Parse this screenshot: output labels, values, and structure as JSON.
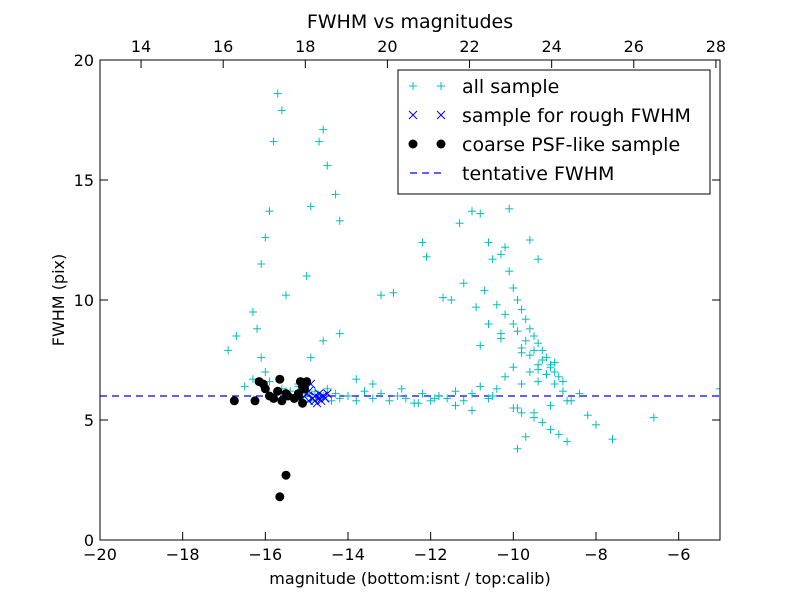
{
  "chart_data": {
    "type": "scatter",
    "title": "FWHM vs magnitudes",
    "xlabel": "magnitude (bottom:isnt / top:calib)",
    "ylabel": "FWHM (pix)",
    "xlim": [
      -20,
      -5
    ],
    "ylim": [
      0,
      20
    ],
    "x_ticks": [
      "−20",
      "−18",
      "−16",
      "−14",
      "−12",
      "−10",
      "−8",
      "−6"
    ],
    "x_tick_values": [
      -20,
      -18,
      -16,
      -14,
      -12,
      -10,
      -8,
      -6
    ],
    "y_ticks": [
      "0",
      "5",
      "10",
      "15",
      "20"
    ],
    "y_tick_values": [
      0,
      5,
      10,
      15,
      20
    ],
    "top_axis": {
      "ticks": [
        "14",
        "16",
        "18",
        "20",
        "22",
        "24",
        "26",
        "28"
      ],
      "tick_values": [
        14,
        16,
        18,
        20,
        22,
        24,
        26,
        28
      ],
      "xlim": [
        13.0,
        28.1
      ]
    },
    "legend_position": "top-right",
    "series": [
      {
        "name": "all sample",
        "marker": "+",
        "color": "#00bfbf",
        "x": [
          -16.9,
          -16.7,
          -16.5,
          -16.3,
          -16.2,
          -16.1,
          -16.0,
          -15.9,
          -15.8,
          -15.6,
          -15.5,
          -15.4,
          -15.3,
          -15.2,
          -15.1,
          -15.0,
          -14.9,
          -14.8,
          -14.7,
          -14.6,
          -14.5,
          -14.4,
          -14.3,
          -14.2,
          -14.0,
          -13.8,
          -13.6,
          -13.4,
          -13.2,
          -13.0,
          -12.8,
          -12.6,
          -12.4,
          -12.2,
          -12.0,
          -11.8,
          -11.6,
          -11.4,
          -11.2,
          -11.0,
          -10.8,
          -10.6,
          -10.4,
          -10.2,
          -10.0,
          -9.8,
          -9.6,
          -9.4,
          -9.2,
          -9.0,
          -8.8,
          -8.6,
          -8.4,
          -8.2,
          -8.0,
          -7.6,
          -6.6,
          -5.0,
          -16.1,
          -16.0,
          -15.9,
          -15.8,
          -15.7,
          -15.6,
          -15.5,
          -15.0,
          -14.9,
          -14.7,
          -14.6,
          -14.5,
          -14.3,
          -14.2,
          -13.2,
          -12.9,
          -12.2,
          -12.1,
          -11.7,
          -11.5,
          -11.3,
          -11.0,
          -10.8,
          -10.6,
          -10.5,
          -10.3,
          -10.2,
          -10.1,
          -10.0,
          -9.9,
          -9.8,
          -9.7,
          -9.6,
          -9.5,
          -9.4,
          -9.3,
          -9.2,
          -9.1,
          -9.0,
          -8.9,
          -10.4,
          -10.2,
          -10.0,
          -9.9,
          -9.7,
          -9.5,
          -9.3,
          -9.1,
          -8.8,
          -10.6,
          -10.3,
          -9.8,
          -9.6,
          -9.4,
          -9.2,
          -9.0,
          -10.0,
          -9.8,
          -9.5,
          -9.3,
          -9.1,
          -8.9,
          -8.7,
          -9.9,
          -9.7,
          -10.1,
          -9.6,
          -9.4,
          -11.2,
          -10.9,
          -10.7,
          -16.3,
          -15.5,
          -15.2,
          -14.9,
          -14.6,
          -14.2,
          -13.8,
          -13.4,
          -12.7,
          -12.3,
          -11.9,
          -11.4,
          -11.0,
          -10.5,
          -9.9,
          -9.5,
          -9.1,
          -8.7,
          -10.8,
          -10.3,
          -9.8,
          -9.4
        ],
        "y": [
          7.9,
          8.5,
          6.4,
          9.5,
          8.8,
          7.6,
          7.0,
          6.6,
          6.1,
          6.3,
          6.0,
          6.2,
          5.9,
          6.4,
          6.0,
          6.1,
          5.8,
          6.2,
          5.9,
          6.0,
          6.3,
          5.8,
          6.1,
          5.9,
          6.0,
          5.8,
          6.2,
          5.9,
          6.1,
          5.8,
          6.0,
          5.9,
          5.7,
          6.1,
          5.8,
          6.0,
          5.9,
          6.2,
          5.8,
          6.1,
          6.4,
          5.9,
          6.3,
          6.8,
          7.2,
          6.5,
          7.0,
          6.6,
          6.9,
          7.4,
          6.2,
          5.8,
          6.1,
          5.2,
          4.8,
          4.2,
          5.1,
          6.3,
          11.5,
          12.6,
          13.7,
          16.6,
          18.6,
          17.9,
          10.2,
          11.0,
          13.9,
          16.6,
          17.1,
          15.6,
          14.4,
          13.3,
          10.2,
          10.3,
          12.4,
          11.8,
          10.1,
          10.0,
          13.2,
          13.7,
          13.6,
          12.4,
          11.7,
          11.9,
          12.2,
          11.2,
          10.5,
          10.0,
          9.6,
          9.2,
          8.8,
          8.5,
          8.2,
          7.9,
          7.6,
          7.3,
          7.0,
          6.8,
          9.8,
          9.4,
          9.0,
          8.7,
          8.3,
          7.9,
          7.5,
          7.2,
          6.6,
          9.0,
          8.6,
          8.0,
          7.7,
          7.3,
          6.9,
          6.5,
          5.5,
          5.3,
          5.1,
          4.9,
          4.6,
          4.4,
          4.1,
          3.8,
          4.3,
          13.8,
          12.5,
          11.7,
          10.7,
          9.7,
          10.4,
          6.7,
          6.2,
          6.5,
          7.6,
          8.3,
          8.6,
          6.7,
          6.5,
          6.3,
          5.7,
          5.9,
          5.6,
          5.4,
          6.0,
          5.5,
          5.3,
          5.6,
          5.8,
          8.1,
          8.4,
          7.8,
          7.1
        ]
      },
      {
        "name": "sample for rough FWHM",
        "marker": "x",
        "color": "#0000ff",
        "x": [
          -15.1,
          -15.0,
          -14.95,
          -14.9,
          -14.85,
          -14.8,
          -14.75,
          -14.7,
          -14.65,
          -14.6,
          -14.55,
          -14.5,
          -14.95,
          -14.8,
          -14.7,
          -14.6
        ],
        "y": [
          5.9,
          6.1,
          5.8,
          6.5,
          5.9,
          6.0,
          5.7,
          6.1,
          5.8,
          6.0,
          5.9,
          6.1,
          6.2,
          5.8,
          5.9,
          6.0
        ]
      },
      {
        "name": "coarse PSF-like sample",
        "marker": "o",
        "color": "#000000",
        "x": [
          -16.75,
          -16.25,
          -16.15,
          -16.05,
          -16.0,
          -15.9,
          -15.8,
          -15.7,
          -15.65,
          -15.6,
          -15.5,
          -15.45,
          -15.3,
          -15.2,
          -15.15,
          -15.1,
          -15.05,
          -15.0,
          -15.2,
          -15.1,
          -15.5,
          -15.65
        ],
        "y": [
          5.8,
          5.8,
          6.6,
          6.5,
          6.3,
          6.0,
          5.9,
          6.2,
          6.7,
          5.8,
          6.1,
          6.0,
          5.9,
          6.1,
          6.6,
          5.7,
          6.3,
          6.6,
          6.0,
          6.4,
          2.7,
          1.8
        ]
      }
    ],
    "reference_lines": [
      {
        "name": "tentative FWHM",
        "type": "horizontal",
        "value": 6.0,
        "style": "dashed",
        "color": "#0000ff"
      }
    ]
  }
}
